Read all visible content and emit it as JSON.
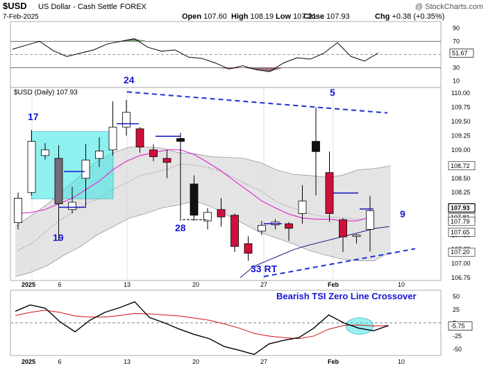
{
  "header": {
    "symbol": "$USD",
    "name": "US Dollar - Cash Settle",
    "exchange": "FOREX",
    "watermark": "@ StockCharts.com",
    "date": "7-Feb-2025",
    "ohlc": [
      {
        "label": "Open",
        "value": "107.60"
      },
      {
        "label": "High",
        "value": "108.19"
      },
      {
        "label": "Low",
        "value": "107.21"
      },
      {
        "label": "Close",
        "value": "107.93"
      },
      {
        "label": "Chg",
        "value": "+0.38 (+0.35%)"
      }
    ]
  },
  "main_legend": "$USD (Daily) 107.93",
  "annotations": {
    "wave_24": "24",
    "wave_17": "17",
    "wave_19": "19",
    "wave_28": "28",
    "wave_33": "33 RT",
    "wave_5": "5",
    "wave_9": "9",
    "tsi_note": "Bearish TSI Zero Line  Crossover"
  },
  "x_tick_labels": [
    "2025",
    "6",
    "13",
    "20",
    "27",
    "Feb",
    "10"
  ],
  "price_tags": [
    "108.72",
    "107.93",
    "107.81",
    "107.79",
    "107.65",
    "107.20"
  ],
  "colors": {
    "up_candle": "#ffffff",
    "down_candle": "#d0103a",
    "down_candle_alt": "#111111",
    "highlight_box": "#33e3e3",
    "trendline": "#1a2fd6",
    "annotation_text": "#1515d6",
    "ma_short": "#e020d0",
    "ma_long": "#1a1a80",
    "tsi_line": "#000000",
    "tsi_signal": "#d01010"
  },
  "chart_data": [
    {
      "type": "line",
      "title": "RSI (upper panel)",
      "y_ticks": [
        90,
        70,
        50,
        30,
        10
      ],
      "ylim": [
        0,
        100
      ],
      "last_value_label": "51.67",
      "x": [
        0,
        1,
        2,
        3,
        4,
        5,
        6,
        7,
        8,
        9,
        10,
        11,
        12,
        13,
        14,
        15,
        16,
        17,
        18,
        19,
        20,
        21,
        22,
        23,
        24,
        25,
        26,
        27
      ],
      "values": [
        58,
        64,
        70,
        56,
        47,
        52,
        57,
        66,
        70,
        74,
        61,
        55,
        57,
        46,
        44,
        37,
        28,
        33,
        27,
        24,
        37,
        45,
        43,
        52,
        68,
        47,
        40,
        52
      ]
    },
    {
      "type": "candlestick",
      "title": "$USD (Daily) 107.93",
      "ylim": [
        106.75,
        110.0
      ],
      "y_ticks": [
        110.0,
        109.75,
        109.5,
        109.25,
        109.0,
        108.75,
        108.5,
        108.25,
        108.0,
        107.75,
        107.5,
        107.25,
        107.0,
        106.75
      ],
      "candles": [
        {
          "o": 107.72,
          "h": 108.25,
          "l": 107.6,
          "c": 108.15,
          "col": "up"
        },
        {
          "o": 108.25,
          "h": 109.35,
          "l": 108.2,
          "c": 109.15,
          "col": "up"
        },
        {
          "o": 108.9,
          "h": 109.12,
          "l": 108.83,
          "c": 109.0,
          "col": "up"
        },
        {
          "o": 108.85,
          "h": 109.08,
          "l": 107.4,
          "c": 108.05,
          "col": "hollowdown"
        },
        {
          "o": 107.95,
          "h": 108.35,
          "l": 107.88,
          "c": 108.08,
          "col": "up"
        },
        {
          "o": 108.5,
          "h": 109.1,
          "l": 108.0,
          "c": 108.82,
          "col": "up"
        },
        {
          "o": 108.85,
          "h": 109.22,
          "l": 108.7,
          "c": 108.98,
          "col": "up"
        },
        {
          "o": 109.0,
          "h": 109.85,
          "l": 108.9,
          "c": 109.4,
          "col": "up"
        },
        {
          "o": 109.4,
          "h": 109.88,
          "l": 109.25,
          "c": 109.66,
          "col": "up"
        },
        {
          "o": 109.37,
          "h": 109.4,
          "l": 108.95,
          "c": 109.05,
          "col": "down"
        },
        {
          "o": 109.0,
          "h": 109.1,
          "l": 108.8,
          "c": 108.88,
          "col": "down"
        },
        {
          "o": 108.85,
          "h": 109.0,
          "l": 108.5,
          "c": 108.78,
          "col": "down"
        },
        {
          "o": 109.2,
          "h": 109.3,
          "l": 107.75,
          "c": 109.15,
          "col": "black"
        },
        {
          "o": 108.4,
          "h": 108.55,
          "l": 107.75,
          "c": 107.85,
          "col": "black"
        },
        {
          "o": 107.75,
          "h": 107.98,
          "l": 107.6,
          "c": 107.9,
          "col": "up"
        },
        {
          "o": 107.95,
          "h": 108.15,
          "l": 107.65,
          "c": 107.82,
          "col": "down"
        },
        {
          "o": 107.85,
          "h": 107.88,
          "l": 107.2,
          "c": 107.3,
          "col": "down"
        },
        {
          "o": 107.35,
          "h": 107.48,
          "l": 107.05,
          "c": 107.18,
          "col": "down"
        },
        {
          "o": 107.57,
          "h": 107.75,
          "l": 107.5,
          "c": 107.67,
          "col": "up"
        },
        {
          "o": 107.68,
          "h": 107.78,
          "l": 107.6,
          "c": 107.73,
          "col": "up"
        },
        {
          "o": 107.7,
          "h": 107.73,
          "l": 107.4,
          "c": 107.62,
          "col": "down"
        },
        {
          "o": 107.88,
          "h": 108.38,
          "l": 107.7,
          "c": 108.1,
          "col": "up"
        },
        {
          "o": 108.97,
          "h": 109.75,
          "l": 108.2,
          "c": 109.15,
          "col": "black"
        },
        {
          "o": 108.6,
          "h": 108.97,
          "l": 107.73,
          "c": 107.88,
          "col": "down"
        },
        {
          "o": 107.77,
          "h": 107.8,
          "l": 107.2,
          "c": 107.47,
          "col": "down"
        },
        {
          "o": 107.48,
          "h": 107.52,
          "l": 107.35,
          "c": 107.5,
          "col": "up"
        },
        {
          "o": 107.6,
          "h": 108.19,
          "l": 107.21,
          "c": 107.93,
          "col": "up"
        }
      ],
      "series": [
        {
          "values": [
            107.88,
            107.9,
            107.95,
            108.05,
            108.15,
            108.3,
            108.45,
            108.65,
            108.8,
            108.9,
            108.95,
            109.0,
            109.0,
            108.92,
            108.78,
            108.63,
            108.45,
            108.28,
            108.1,
            107.98,
            107.87,
            107.8,
            107.78,
            107.78,
            107.75,
            107.75,
            107.81
          ]
        },
        {
          "values": [
            107.23,
            107.35,
            107.55,
            107.75,
            107.9,
            108.05,
            108.15,
            108.3,
            108.42,
            108.55,
            108.6,
            108.66,
            108.75,
            108.73,
            108.69,
            108.62,
            108.5,
            108.38,
            108.27,
            108.1,
            108.0,
            107.92,
            107.85,
            107.82,
            107.8,
            107.78,
            107.79
          ]
        },
        {
          "values": [
            null,
            null,
            null,
            null,
            null,
            null,
            null,
            null,
            null,
            null,
            null,
            null,
            null,
            null,
            null,
            null,
            106.75,
            106.95,
            107.05,
            107.15,
            107.25,
            107.32,
            107.38,
            107.44,
            107.5,
            107.56,
            107.62,
            107.65
          ]
        },
        {
          "values": [
            107.65,
            107.85,
            108.05,
            108.3,
            108.55,
            108.8,
            108.95,
            109.05,
            109.05,
            109.03,
            108.95,
            108.93,
            108.88,
            108.87,
            108.85,
            108.78,
            108.65,
            108.57,
            108.55,
            108.52,
            108.55,
            108.65,
            108.67,
            108.72
          ]
        },
        {
          "values": [
            106.77,
            106.85,
            106.97,
            107.15,
            107.3,
            107.5,
            107.65,
            107.8,
            107.88,
            107.98,
            108.03,
            108.1,
            108.0,
            107.85,
            107.7,
            107.55,
            107.45,
            107.35,
            107.23,
            107.15,
            107.08,
            107.05,
            107.05,
            107.2
          ]
        }
      ]
    },
    {
      "type": "line",
      "title": "TSI (lower panel)",
      "y_ticks": [
        50,
        25,
        0,
        -25,
        -50
      ],
      "ylim": [
        -62,
        62
      ],
      "last_value_label": "-5.75",
      "series": [
        {
          "values": [
            22,
            34,
            28,
            2,
            -17,
            5,
            20,
            29,
            40,
            10,
            0,
            -12,
            -22,
            -30,
            -45,
            -52,
            -60,
            -40,
            -33,
            -28,
            -10,
            15,
            0,
            -10,
            -15,
            -5
          ]
        },
        {
          "values": [
            14,
            20,
            24,
            20,
            13,
            11,
            11,
            14,
            18,
            17,
            15,
            13,
            9,
            5,
            -2,
            -10,
            -20,
            -25,
            -28,
            -30,
            -25,
            -12,
            -5,
            -4,
            -6,
            -5
          ]
        }
      ]
    }
  ]
}
